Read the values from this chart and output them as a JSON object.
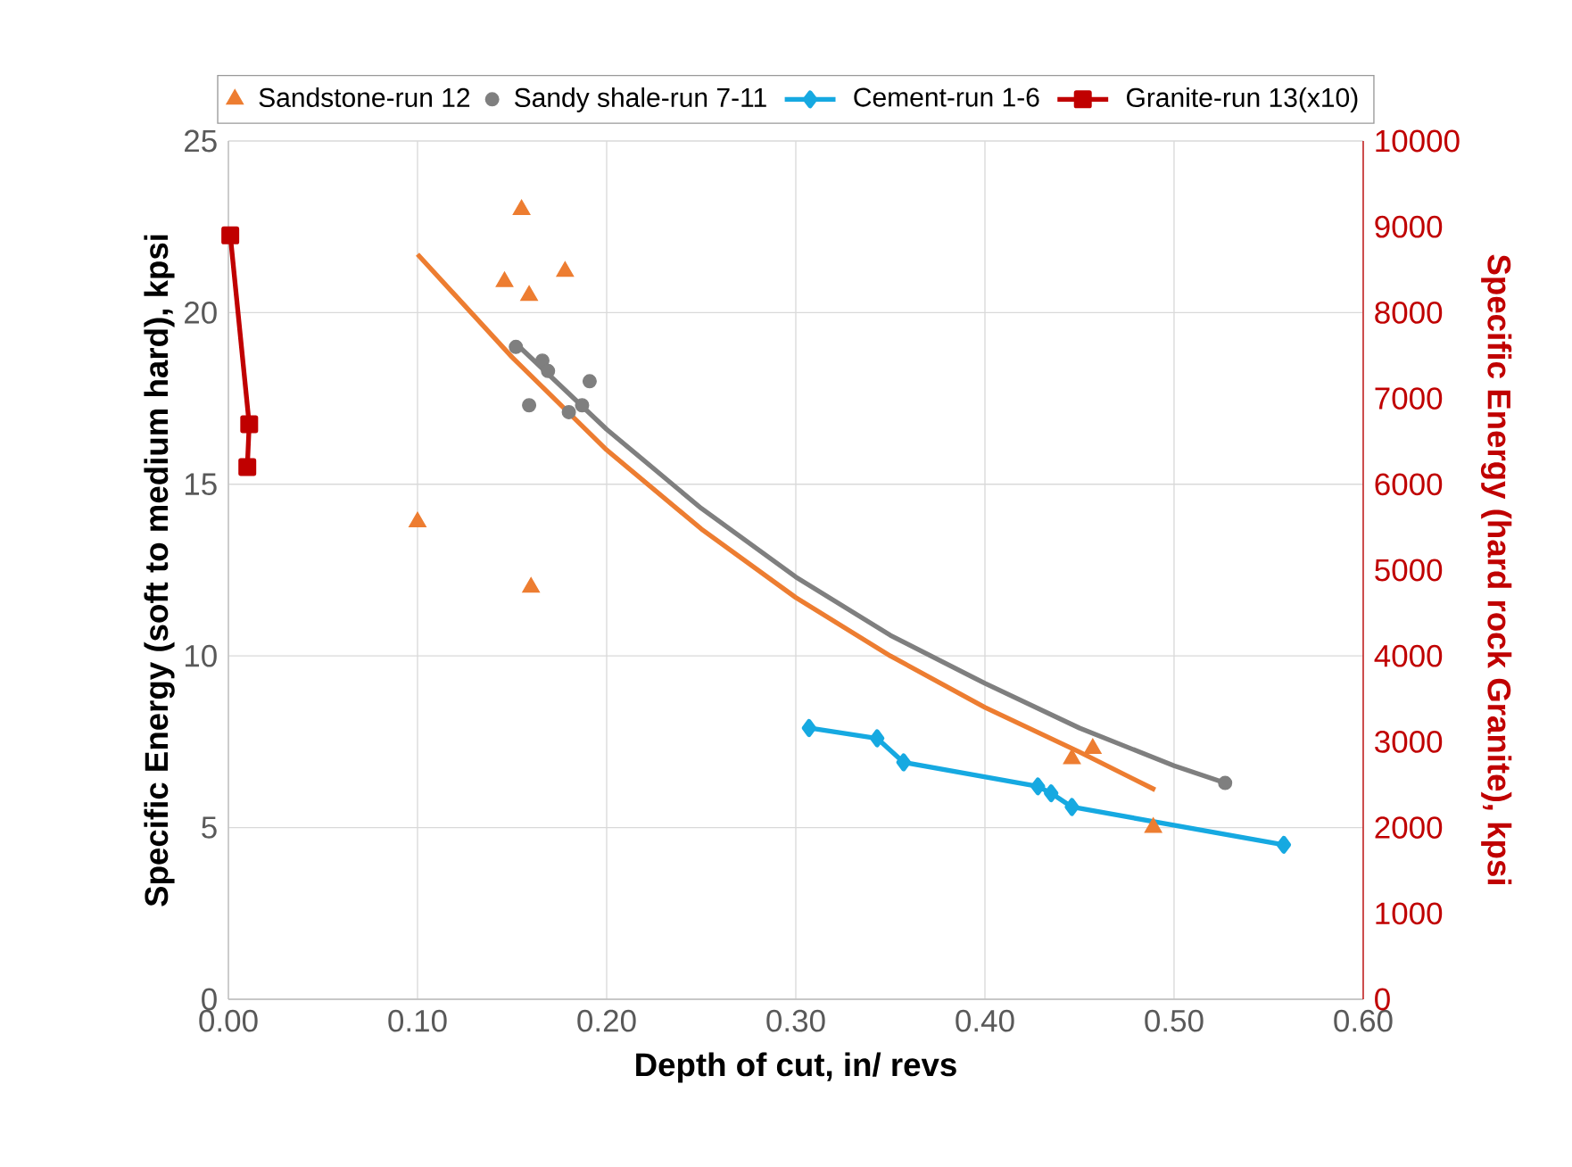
{
  "chart_data": {
    "type": "scatter",
    "xlabel": "Depth of cut, in/ revs",
    "ylabel": "Specific Energy (soft to medium hard), kpsi",
    "y2label": "Specific Energy (hard rock Granite), kpsi",
    "xlim": [
      0,
      0.6
    ],
    "xticks": [
      {
        "value": 0,
        "label": "0.00"
      },
      {
        "value": 0.1,
        "label": "0.10"
      },
      {
        "value": 0.2,
        "label": "0.20"
      },
      {
        "value": 0.3,
        "label": "0.30"
      },
      {
        "value": 0.4,
        "label": "0.40"
      },
      {
        "value": 0.5,
        "label": "0.50"
      },
      {
        "value": 0.6,
        "label": "0.60"
      }
    ],
    "ylim": [
      0,
      25
    ],
    "yticks": [
      0,
      5,
      10,
      15,
      20,
      25
    ],
    "y2lim": [
      0,
      10000
    ],
    "y2ticks": [
      0,
      1000,
      2000,
      3000,
      4000,
      5000,
      6000,
      7000,
      8000,
      9000,
      10000
    ],
    "grid": true,
    "legend": "top",
    "series": [
      {
        "name": "Sandstone-run 12",
        "marker": "triangle",
        "color": "#ed7d31",
        "x": [
          0.1,
          0.155,
          0.146,
          0.159,
          0.178,
          0.16,
          0.446,
          0.457,
          0.489
        ],
        "values": [
          13.9,
          23.0,
          20.9,
          20.5,
          21.2,
          12.0,
          7.0,
          7.3,
          5.0
        ]
      },
      {
        "name": "Sandy shale-run 7-11",
        "marker": "circle",
        "color": "#7f7f7f",
        "x": [
          0.152,
          0.159,
          0.166,
          0.169,
          0.18,
          0.187,
          0.191,
          0.527
        ],
        "values": [
          19.0,
          17.3,
          18.6,
          18.3,
          17.1,
          17.3,
          18.0,
          6.3
        ]
      },
      {
        "name": "Cement-run 1-6",
        "type": "line",
        "marker": "diamond",
        "line_style": "solid",
        "color": "#16a9e1",
        "x": [
          0.307,
          0.343,
          0.357,
          0.428,
          0.435,
          0.446,
          0.558
        ],
        "values": [
          7.9,
          7.6,
          6.9,
          6.2,
          6.0,
          5.6,
          4.5
        ]
      },
      {
        "name": "Granite-run 13(x10)",
        "type": "line",
        "marker": "square",
        "line_style": "solid",
        "axis": "y2",
        "color": "#c00000",
        "x": [
          0.001,
          0.011,
          0.01
        ],
        "values": [
          8900,
          6700,
          6200
        ]
      },
      {
        "type": "line",
        "marker": "none",
        "line_style": "solid",
        "color": "#ed7d31",
        "x": [
          0.1,
          0.15,
          0.2,
          0.25,
          0.3,
          0.35,
          0.4,
          0.45,
          0.49
        ],
        "values": [
          21.7,
          18.7,
          16.0,
          13.7,
          11.7,
          10.0,
          8.5,
          7.2,
          6.1
        ]
      },
      {
        "type": "line",
        "marker": "none",
        "line_style": "solid",
        "color": "#7f7f7f",
        "x": [
          0.152,
          0.2,
          0.25,
          0.3,
          0.35,
          0.4,
          0.45,
          0.5,
          0.527
        ],
        "values": [
          19.1,
          16.6,
          14.3,
          12.3,
          10.6,
          9.2,
          7.9,
          6.8,
          6.3
        ]
      }
    ]
  }
}
